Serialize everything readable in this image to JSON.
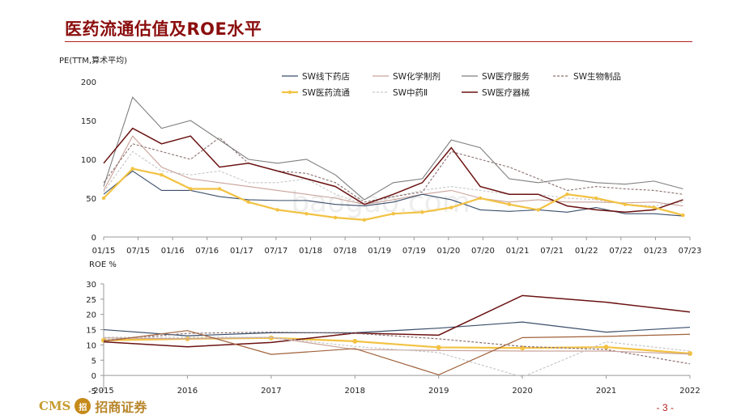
{
  "header": {
    "title": "医药流通估值及ROE水平"
  },
  "footer": {
    "logo_text": "CMS",
    "logo_badge": "招",
    "brand": "招商证券",
    "page": "- 3 -"
  },
  "watermark": "baogao.com",
  "colors": {
    "SW线下药店": "#3a4e6a",
    "SW化学制剂": "#c9a39a",
    "SW医疗服务": "#7f7f7f",
    "SW生物制品": "#8c7070",
    "SW医药流通": "#f2c243",
    "SW中药Ⅱ": "#c8c8c8",
    "SW医疗器械": "#6b1212",
    "roe_orange": "#a0613a"
  },
  "chart_data": [
    {
      "type": "line",
      "ylabel": "PE(TTM,算术平均)",
      "ylim": [
        0,
        200
      ],
      "yticks": [
        "0",
        "50",
        "100",
        "150",
        "200"
      ],
      "xticks": [
        "01/15",
        "07/15",
        "01/16",
        "07/16",
        "01/17",
        "07/17",
        "01/18",
        "07/18",
        "01/19",
        "07/19",
        "01/20",
        "07/20",
        "01/21",
        "07/21",
        "01/22",
        "07/22",
        "01/23",
        "07/23"
      ],
      "legend": [
        "SW线下药店",
        "SW化学制剂",
        "SW医疗服务",
        "SW生物制品",
        "SW医药流通",
        "SW中药Ⅱ",
        "SW医疗器械"
      ],
      "legend_position": "top-right",
      "series": [
        {
          "name": "SW线下药店",
          "values": [
            55,
            85,
            60,
            60,
            52,
            48,
            47,
            47,
            42,
            40,
            45,
            55,
            48,
            35,
            33,
            35,
            32,
            38,
            30,
            30,
            27
          ]
        },
        {
          "name": "SW化学制剂",
          "values": [
            60,
            130,
            90,
            75,
            70,
            65,
            60,
            55,
            50,
            42,
            48,
            55,
            60,
            50,
            45,
            48,
            45,
            45,
            44,
            45,
            40
          ]
        },
        {
          "name": "SW医疗服务",
          "values": [
            65,
            180,
            140,
            150,
            125,
            100,
            95,
            100,
            80,
            48,
            70,
            75,
            125,
            115,
            75,
            70,
            75,
            70,
            68,
            72,
            62
          ]
        },
        {
          "name": "SW生物制品",
          "values": [
            70,
            120,
            110,
            100,
            128,
            95,
            85,
            82,
            70,
            45,
            52,
            58,
            110,
            100,
            90,
            75,
            60,
            65,
            62,
            60,
            55
          ]
        },
        {
          "name": "SW医药流通",
          "values": [
            50,
            88,
            80,
            62,
            62,
            45,
            35,
            30,
            25,
            22,
            30,
            32,
            38,
            50,
            42,
            35,
            55,
            50,
            42,
            38,
            28
          ]
        },
        {
          "name": "SW中药Ⅱ",
          "values": [
            58,
            110,
            85,
            80,
            85,
            70,
            70,
            75,
            55,
            42,
            52,
            60,
            65,
            60,
            55,
            55,
            50,
            48,
            42,
            40,
            45
          ]
        },
        {
          "name": "SW医疗器械",
          "values": [
            95,
            140,
            120,
            130,
            90,
            95,
            85,
            75,
            65,
            42,
            55,
            70,
            115,
            65,
            55,
            55,
            40,
            35,
            32,
            35,
            48
          ]
        }
      ]
    },
    {
      "type": "line",
      "ylabel": "ROE %",
      "ylim": [
        -5,
        30
      ],
      "yticks": [
        "-5",
        "0",
        "5",
        "10",
        "15",
        "20",
        "25",
        "30"
      ],
      "categories": [
        "2015",
        "2016",
        "2017",
        "2018",
        "2019",
        "2020",
        "2021",
        "2022"
      ],
      "series": [
        {
          "name": "SW线下药店",
          "values": [
            15.0,
            13.0,
            14.0,
            14.0,
            15.5,
            17.5,
            14.2,
            15.8
          ]
        },
        {
          "name": "SW医药流通",
          "values": [
            11.5,
            12.0,
            12.3,
            11.2,
            9.2,
            9.0,
            9.3,
            7.2
          ]
        },
        {
          "name": "SW医疗器械",
          "values": [
            11.0,
            9.4,
            10.8,
            13.9,
            13.2,
            26.2,
            24.0,
            20.8
          ]
        },
        {
          "name": "SW生物制品",
          "values": [
            11.5,
            13.8,
            14.2,
            13.8,
            12.0,
            9.5,
            8.5,
            3.8
          ]
        },
        {
          "name": "SW化学制剂",
          "values": [
            12.3,
            12.0,
            12.5,
            8.5,
            8.2,
            8.0,
            8.0,
            7.0
          ]
        },
        {
          "name": "SW中药Ⅱ",
          "values": [
            12.5,
            12.5,
            12.5,
            9.5,
            7.5,
            -0.5,
            11.0,
            8.0
          ]
        },
        {
          "name": "SW医疗服务",
          "values": [
            11.2,
            14.7,
            6.9,
            8.8,
            0.2,
            12.4,
            12.8,
            13.5
          ]
        }
      ]
    }
  ]
}
